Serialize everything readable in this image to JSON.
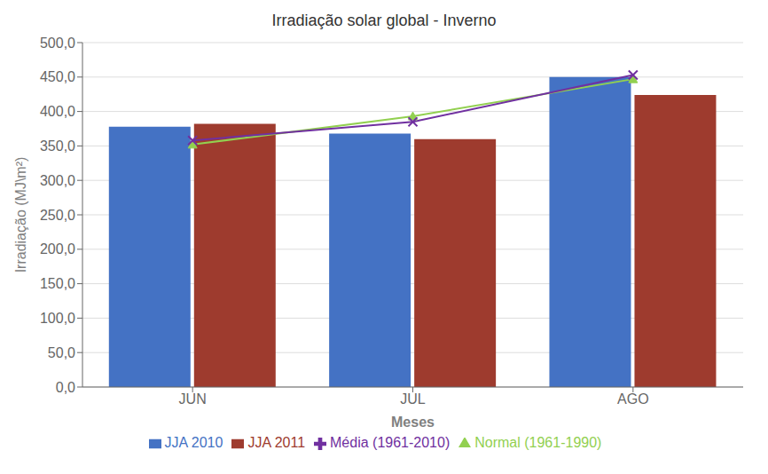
{
  "chart_data": {
    "type": "bar",
    "title": "Irradiação solar global - Inverno",
    "xlabel": "Meses",
    "ylabel": "Irradiação (MJ\\m²)",
    "categories": [
      "JUN",
      "JUL",
      "AGO"
    ],
    "series": [
      {
        "name": "JJA 2010",
        "type": "bar",
        "color": "#4472C4",
        "values": [
          378,
          368,
          450
        ]
      },
      {
        "name": "JJA 2011",
        "type": "bar",
        "color": "#9E3B2E",
        "values": [
          382,
          360,
          424
        ]
      },
      {
        "name": "Normal (1961-1990)",
        "type": "line",
        "color": "#92D050",
        "marker": "triangle",
        "values": [
          352,
          393,
          447
        ]
      },
      {
        "name": "Média (1961-2010)",
        "type": "line",
        "color": "#7030A0",
        "marker": "x",
        "values": [
          358,
          385,
          453
        ]
      }
    ],
    "ylim": [
      0,
      500
    ],
    "yticks": [
      {
        "value": 0,
        "label": "0,0"
      },
      {
        "value": 50,
        "label": "50,0"
      },
      {
        "value": 100,
        "label": "100,0"
      },
      {
        "value": 150,
        "label": "150,0"
      },
      {
        "value": 200,
        "label": "200,0"
      },
      {
        "value": 250,
        "label": "250,0"
      },
      {
        "value": 300,
        "label": "300,0"
      },
      {
        "value": 350,
        "label": "350,0"
      },
      {
        "value": 400,
        "label": "400,0"
      },
      {
        "value": 450,
        "label": "450,0"
      },
      {
        "value": 500,
        "label": "500,0"
      }
    ],
    "grid": true,
    "legend": "bottom"
  }
}
